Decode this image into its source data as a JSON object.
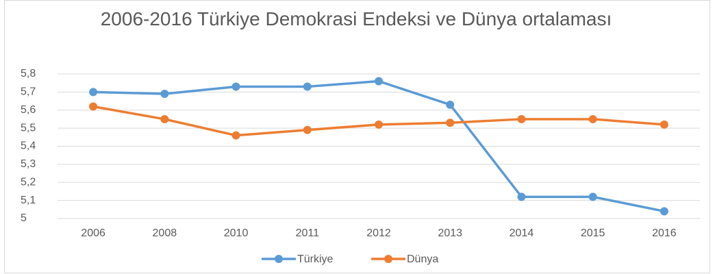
{
  "chart_data": {
    "type": "line",
    "title": "2006-2016 Türkiye Demokrasi Endeksi ve Dünya ortalaması",
    "categories": [
      "2006",
      "2008",
      "2010",
      "2011",
      "2012",
      "2013",
      "2014",
      "2015",
      "2016"
    ],
    "series": [
      {
        "name": "Türkiye",
        "color": "#5b9bd5",
        "values": [
          5.7,
          5.69,
          5.73,
          5.73,
          5.76,
          5.63,
          5.12,
          5.12,
          5.04
        ]
      },
      {
        "name": "Dünya",
        "color": "#ed7d31",
        "values": [
          5.62,
          5.55,
          5.46,
          5.49,
          5.52,
          5.53,
          5.55,
          5.55,
          5.52
        ]
      }
    ],
    "ylim": [
      5,
      5.8
    ],
    "yticks": [
      5,
      {
        "value": 5.1,
        "label": "5,1"
      },
      {
        "value": 5.2,
        "label": "5,2"
      },
      {
        "value": 5.3,
        "label": "5,3"
      },
      {
        "value": 5.4,
        "label": "5,4"
      },
      {
        "value": 5.5,
        "label": "5,5"
      },
      {
        "value": 5.6,
        "label": "5,6"
      },
      {
        "value": 5.7,
        "label": "5,7"
      },
      {
        "value": 5.8,
        "label": "5,8"
      }
    ],
    "grid": true,
    "legend": "bottom"
  }
}
